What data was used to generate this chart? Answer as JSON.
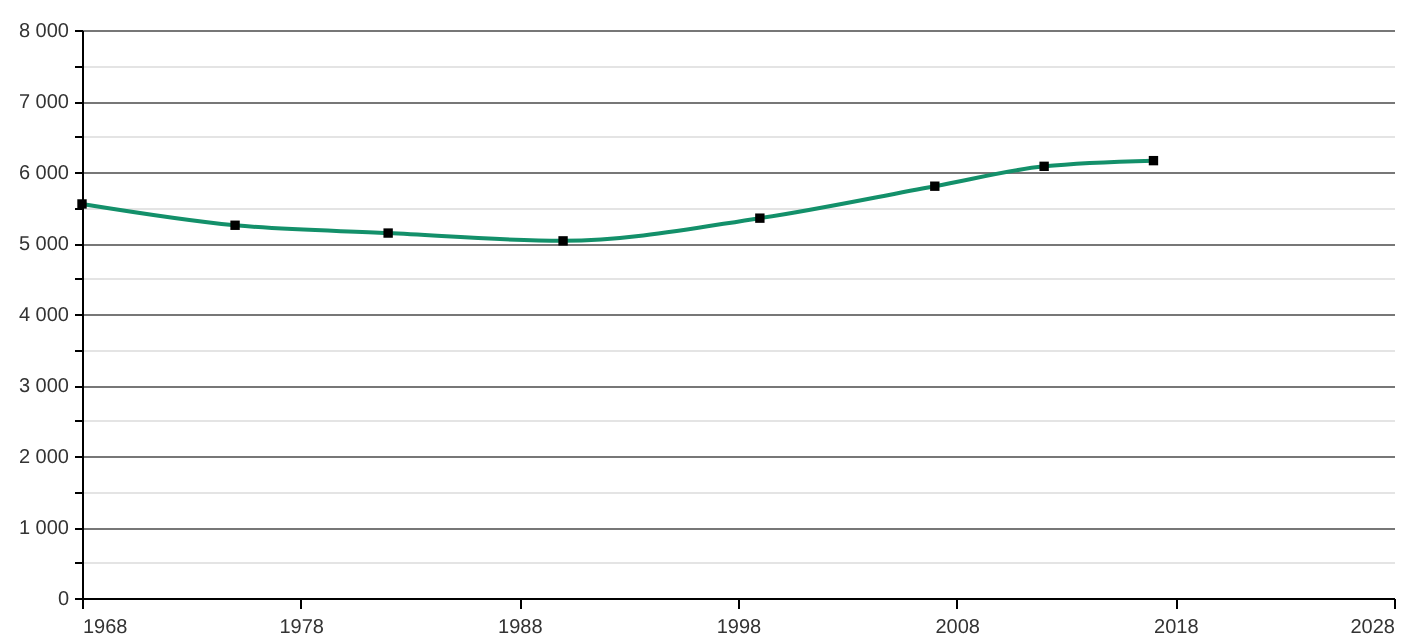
{
  "chart_data": {
    "type": "line",
    "x": [
      1968,
      1975,
      1982,
      1990,
      1999,
      2007,
      2012,
      2017
    ],
    "series": [
      {
        "color": "#13906a",
        "values": [
          5550,
          5250,
          5140,
          5030,
          5350,
          5800,
          6080,
          6160
        ]
      }
    ],
    "xlim": [
      1968,
      2028
    ],
    "xticks": [
      1968,
      1978,
      1988,
      1998,
      2008,
      2018,
      2028
    ],
    "ylim": [
      0,
      8000
    ],
    "yticks": [
      {
        "value": 0,
        "label": "0"
      },
      {
        "value": 500,
        "label": null
      },
      {
        "value": 1000,
        "label": "1 000"
      },
      {
        "value": 1500,
        "label": null
      },
      {
        "value": 2000,
        "label": "2 000"
      },
      {
        "value": 2500,
        "label": null
      },
      {
        "value": 3000,
        "label": "3 000"
      },
      {
        "value": 3500,
        "label": null
      },
      {
        "value": 4000,
        "label": "4 000"
      },
      {
        "value": 4500,
        "label": null
      },
      {
        "value": 5000,
        "label": "5 000"
      },
      {
        "value": 5500,
        "label": null
      },
      {
        "value": 6000,
        "label": "6 000"
      },
      {
        "value": 6500,
        "label": null
      },
      {
        "value": 7000,
        "label": "7 000"
      },
      {
        "value": 7500,
        "label": null
      },
      {
        "value": 8000,
        "label": "8 000"
      }
    ],
    "grid": "y",
    "marker": "square",
    "line_style": "solid"
  }
}
